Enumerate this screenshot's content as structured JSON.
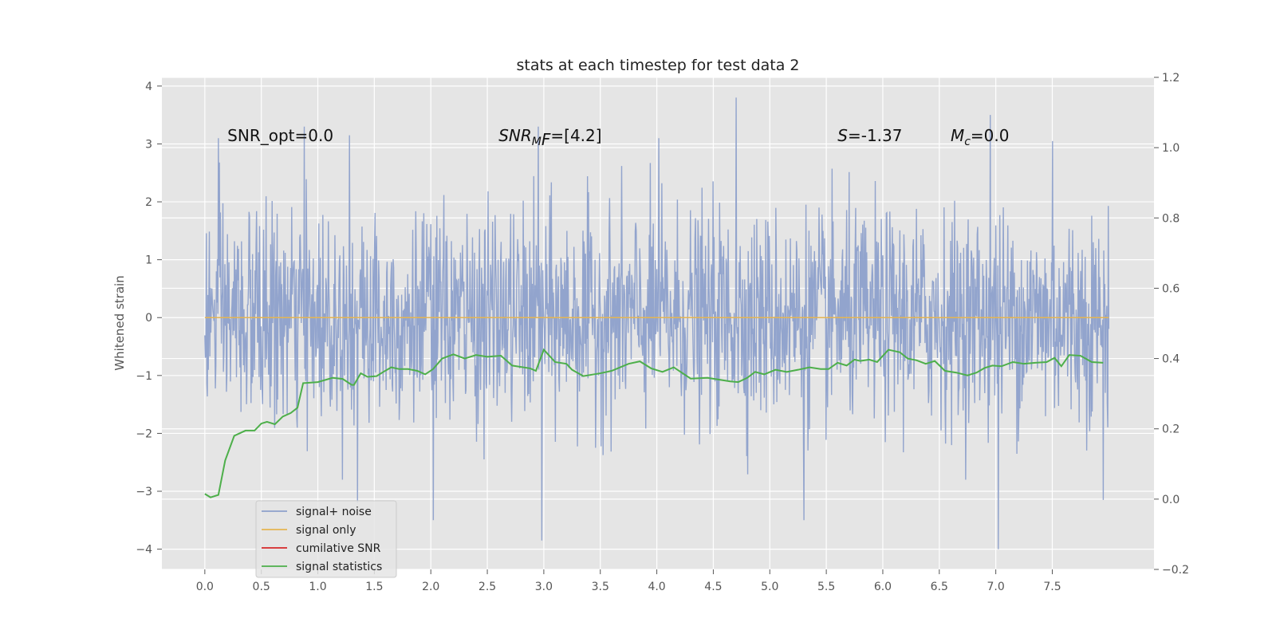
{
  "chart_data": {
    "type": "line",
    "title": "stats at each timestep for test data 2",
    "ylabel": "Whitened strain",
    "xlabel": "",
    "xlim": [
      -0.38,
      8.4
    ],
    "ylim": [
      -4.35,
      4.15
    ],
    "y2lim": [
      -0.2,
      1.2
    ],
    "xticks": [
      "0.0",
      "0.5",
      "1.0",
      "1.5",
      "2.0",
      "2.5",
      "3.0",
      "3.5",
      "4.0",
      "4.5",
      "5.0",
      "5.5",
      "6.0",
      "6.5",
      "7.0",
      "7.5"
    ],
    "yticks": [
      "4",
      "3",
      "2",
      "1",
      "0",
      "−1",
      "−2",
      "−3",
      "−4"
    ],
    "y2ticks": [
      "1.2",
      "1.0",
      "0.8",
      "0.6",
      "0.4",
      "0.2",
      "0.0",
      "−0.2"
    ],
    "grid": true,
    "legend_position": "lower-left",
    "annotations": [
      {
        "text": "SNR_opt=0.0",
        "x": 0.2,
        "y": 3.05
      },
      {
        "text": "SNR_MF=[4.2]",
        "x": 2.6,
        "y": 3.05
      },
      {
        "text": "S=-1.37",
        "x": 5.6,
        "y": 3.05
      },
      {
        "text": "M_c=0.0",
        "x": 6.6,
        "y": 3.05
      }
    ],
    "series": [
      {
        "name": "signal+ noise",
        "color": "#8da0cb",
        "axis": "left",
        "x_range": [
          0.0,
          8.0
        ],
        "envelope_peaks": [
          {
            "x": 0.12,
            "y": 3.1
          },
          {
            "x": 0.88,
            "y": 3.3
          },
          {
            "x": 1.28,
            "y": 3.15
          },
          {
            "x": 2.95,
            "y": 3.3
          },
          {
            "x": 4.02,
            "y": 3.1
          },
          {
            "x": 4.7,
            "y": 3.8
          },
          {
            "x": 6.95,
            "y": 3.5
          },
          {
            "x": 7.5,
            "y": 3.05
          }
        ],
        "envelope_troughs": [
          {
            "x": 1.35,
            "y": -3.2
          },
          {
            "x": 2.02,
            "y": -3.5
          },
          {
            "x": 2.98,
            "y": -3.85
          },
          {
            "x": 5.3,
            "y": -3.5
          },
          {
            "x": 7.02,
            "y": -4.0
          },
          {
            "x": 7.95,
            "y": -3.15
          }
        ]
      },
      {
        "name": "signal only",
        "color": "#e5b552",
        "axis": "left",
        "x": [
          0.0,
          8.0
        ],
        "values": [
          0.0,
          0.0
        ]
      },
      {
        "name": "cumilative SNR",
        "color": "#d62728",
        "axis": "right",
        "x": [],
        "values": []
      },
      {
        "name": "signal statistics",
        "color": "#4daf4a",
        "axis": "right",
        "x": [
          0.0,
          0.05,
          0.12,
          0.18,
          0.26,
          0.36,
          0.44,
          0.5,
          0.55,
          0.62,
          0.69,
          0.76,
          0.82,
          0.87,
          1.0,
          1.13,
          1.22,
          1.3,
          1.32,
          1.38,
          1.44,
          1.52,
          1.58,
          1.65,
          1.72,
          1.8,
          1.88,
          1.95,
          2.02,
          2.1,
          2.2,
          2.3,
          2.4,
          2.5,
          2.62,
          2.72,
          2.88,
          2.93,
          3.0,
          3.1,
          3.2,
          3.25,
          3.35,
          3.5,
          3.6,
          3.75,
          3.85,
          3.95,
          4.05,
          4.15,
          4.3,
          4.45,
          4.55,
          4.65,
          4.72,
          4.8,
          4.87,
          4.95,
          5.05,
          5.15,
          5.25,
          5.35,
          5.45,
          5.52,
          5.6,
          5.68,
          5.75,
          5.8,
          5.88,
          5.95,
          6.05,
          6.15,
          6.22,
          6.3,
          6.38,
          6.46,
          6.55,
          6.65,
          6.75,
          6.83,
          6.9,
          6.97,
          7.05,
          7.15,
          7.25,
          7.35,
          7.45,
          7.52,
          7.58,
          7.65,
          7.75,
          7.85,
          7.95
        ],
        "values": [
          0.015,
          0.005,
          0.012,
          0.11,
          0.18,
          0.195,
          0.195,
          0.215,
          0.22,
          0.213,
          0.235,
          0.245,
          0.26,
          0.33,
          0.333,
          0.345,
          0.342,
          0.325,
          0.325,
          0.358,
          0.348,
          0.35,
          0.362,
          0.375,
          0.37,
          0.37,
          0.365,
          0.355,
          0.37,
          0.4,
          0.412,
          0.4,
          0.41,
          0.405,
          0.408,
          0.38,
          0.372,
          0.365,
          0.425,
          0.39,
          0.385,
          0.368,
          0.35,
          0.358,
          0.365,
          0.385,
          0.392,
          0.372,
          0.362,
          0.375,
          0.343,
          0.345,
          0.34,
          0.335,
          0.333,
          0.345,
          0.362,
          0.355,
          0.368,
          0.362,
          0.368,
          0.375,
          0.37,
          0.37,
          0.388,
          0.38,
          0.397,
          0.393,
          0.397,
          0.39,
          0.425,
          0.418,
          0.4,
          0.395,
          0.385,
          0.393,
          0.365,
          0.36,
          0.352,
          0.36,
          0.373,
          0.38,
          0.378,
          0.39,
          0.385,
          0.388,
          0.39,
          0.402,
          0.378,
          0.41,
          0.408,
          0.39,
          0.388
        ]
      }
    ]
  }
}
